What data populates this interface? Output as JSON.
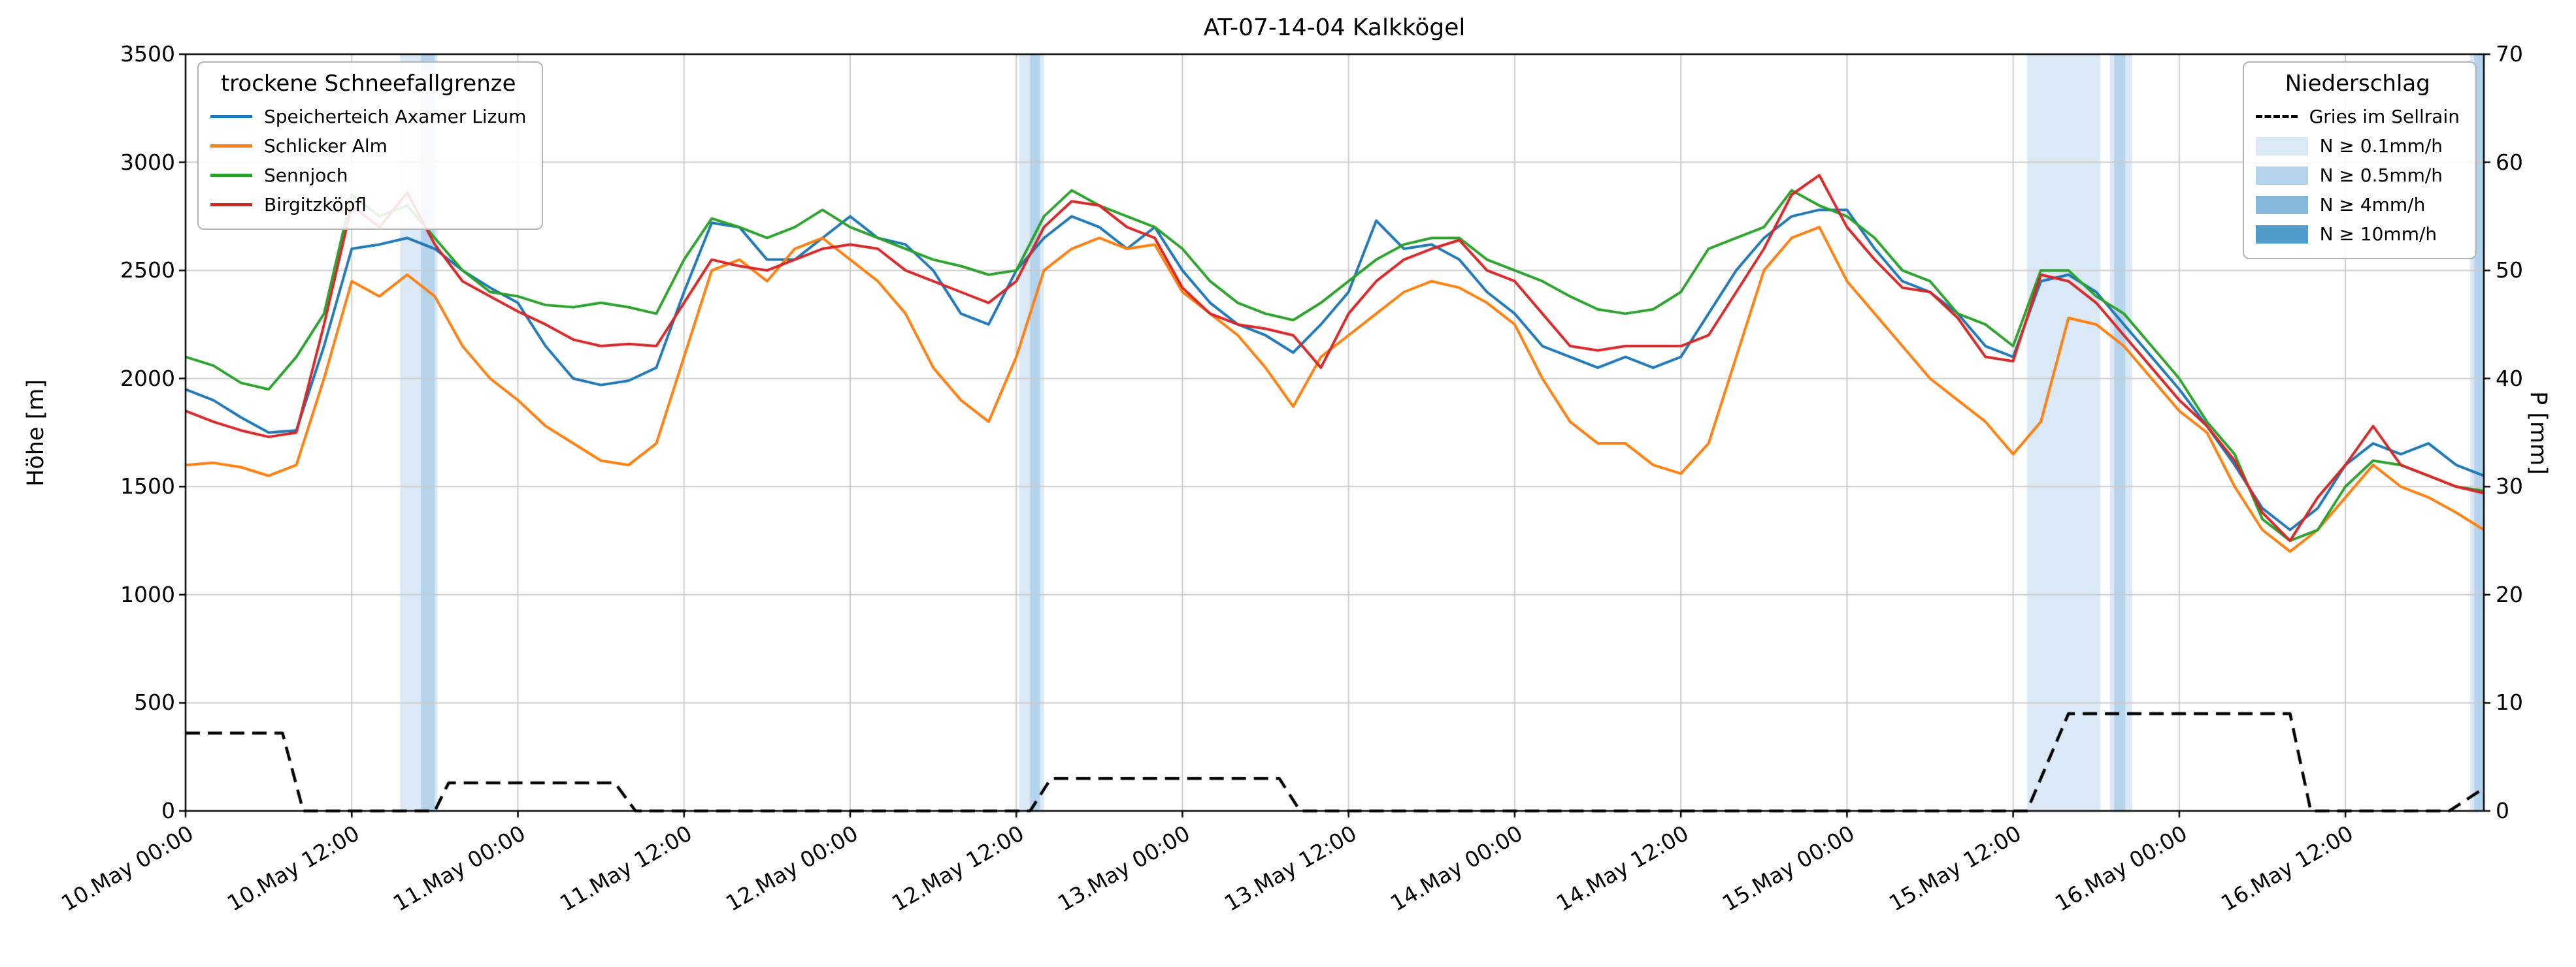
{
  "chart_data": {
    "type": "line",
    "title": "AT-07-14-04 Kalkkögel",
    "xlabel": "",
    "ylabel_left": "Höhe [m]",
    "ylabel_right": "P [mm]",
    "x_unit": "hours since 10.May 00:00",
    "xlim": [
      0,
      166
    ],
    "ylim_left": [
      0,
      3500
    ],
    "ylim_right": [
      0,
      70
    ],
    "grid": true,
    "grid_color": "#cccccc",
    "y_ticks_left": [
      0,
      500,
      1000,
      1500,
      2000,
      2500,
      3000,
      3500
    ],
    "y_ticks_right": [
      0,
      10,
      20,
      30,
      40,
      50,
      60,
      70
    ],
    "x_ticks": [
      {
        "h": 0,
        "label": "10.May 00:00"
      },
      {
        "h": 12,
        "label": "10.May 12:00"
      },
      {
        "h": 24,
        "label": "11.May 00:00"
      },
      {
        "h": 36,
        "label": "11.May 12:00"
      },
      {
        "h": 48,
        "label": "12.May 00:00"
      },
      {
        "h": 60,
        "label": "12.May 12:00"
      },
      {
        "h": 72,
        "label": "13.May 00:00"
      },
      {
        "h": 84,
        "label": "13.May 12:00"
      },
      {
        "h": 96,
        "label": "14.May 00:00"
      },
      {
        "h": 108,
        "label": "14.May 12:00"
      },
      {
        "h": 120,
        "label": "15.May 00:00"
      },
      {
        "h": 132,
        "label": "15.May 12:00"
      },
      {
        "h": 144,
        "label": "16.May 00:00"
      },
      {
        "h": 156,
        "label": "16.May 12:00"
      }
    ],
    "x_hours": [
      0,
      2,
      4,
      6,
      8,
      10,
      12,
      14,
      16,
      18,
      20,
      22,
      24,
      26,
      28,
      30,
      32,
      34,
      36,
      38,
      40,
      42,
      44,
      46,
      48,
      50,
      52,
      54,
      56,
      58,
      60,
      62,
      64,
      66,
      68,
      70,
      72,
      74,
      76,
      78,
      80,
      82,
      84,
      86,
      88,
      90,
      92,
      94,
      96,
      98,
      100,
      102,
      104,
      106,
      108,
      110,
      112,
      114,
      116,
      118,
      120,
      122,
      124,
      126,
      128,
      130,
      132,
      134,
      136,
      138,
      140,
      142,
      144,
      146,
      148,
      150,
      152,
      154,
      156,
      158,
      160,
      162,
      164,
      166
    ],
    "series": [
      {
        "name": "Speicherteich Axamer Lizum",
        "color": "#1f77b4",
        "axis": "left",
        "dash": false,
        "values": [
          1950,
          1900,
          1820,
          1750,
          1760,
          2150,
          2600,
          2620,
          2650,
          2600,
          2500,
          2420,
          2350,
          2150,
          2000,
          1970,
          1990,
          2050,
          2400,
          2720,
          2700,
          2550,
          2550,
          2650,
          2750,
          2650,
          2620,
          2500,
          2300,
          2250,
          2500,
          2650,
          2750,
          2700,
          2600,
          2700,
          2500,
          2350,
          2250,
          2200,
          2120,
          2250,
          2400,
          2730,
          2600,
          2620,
          2550,
          2400,
          2300,
          2150,
          2100,
          2050,
          2100,
          2050,
          2100,
          2300,
          2500,
          2650,
          2750,
          2780,
          2780,
          2600,
          2450,
          2400,
          2300,
          2150,
          2100,
          2450,
          2480,
          2400,
          2250,
          2100,
          1950,
          1780,
          1600,
          1400,
          1300,
          1400,
          1600,
          1700,
          1650,
          1700,
          1600,
          1550
        ]
      },
      {
        "name": "Schlicker Alm",
        "color": "#ff7f0e",
        "axis": "left",
        "dash": false,
        "values": [
          1600,
          1610,
          1590,
          1550,
          1600,
          2000,
          2450,
          2380,
          2480,
          2380,
          2150,
          2000,
          1900,
          1780,
          1700,
          1620,
          1600,
          1700,
          2100,
          2500,
          2550,
          2450,
          2600,
          2650,
          2550,
          2450,
          2300,
          2050,
          1900,
          1800,
          2100,
          2500,
          2600,
          2650,
          2600,
          2620,
          2400,
          2300,
          2200,
          2050,
          1870,
          2100,
          2200,
          2300,
          2400,
          2450,
          2420,
          2350,
          2250,
          2000,
          1800,
          1700,
          1700,
          1600,
          1560,
          1700,
          2100,
          2500,
          2650,
          2700,
          2450,
          2300,
          2150,
          2000,
          1900,
          1800,
          1650,
          1800,
          2280,
          2250,
          2150,
          2000,
          1850,
          1750,
          1500,
          1300,
          1200,
          1300,
          1450,
          1600,
          1500,
          1450,
          1380,
          1300
        ]
      },
      {
        "name": "Sennjoch",
        "color": "#2ca02c",
        "axis": "left",
        "dash": false,
        "values": [
          2100,
          2060,
          1980,
          1950,
          2100,
          2300,
          2850,
          2750,
          2800,
          2650,
          2500,
          2400,
          2380,
          2340,
          2330,
          2350,
          2330,
          2300,
          2550,
          2740,
          2700,
          2650,
          2700,
          2780,
          2700,
          2650,
          2600,
          2550,
          2520,
          2480,
          2500,
          2750,
          2870,
          2800,
          2750,
          2700,
          2600,
          2450,
          2350,
          2300,
          2270,
          2350,
          2450,
          2550,
          2620,
          2650,
          2650,
          2550,
          2500,
          2450,
          2380,
          2320,
          2300,
          2320,
          2400,
          2600,
          2650,
          2700,
          2870,
          2800,
          2750,
          2650,
          2500,
          2450,
          2300,
          2250,
          2150,
          2500,
          2500,
          2380,
          2300,
          2150,
          2000,
          1800,
          1650,
          1350,
          1250,
          1300,
          1500,
          1620,
          1600,
          1550,
          1500,
          1480
        ]
      },
      {
        "name": "Birgitzköpfl",
        "color": "#d62728",
        "axis": "left",
        "dash": false,
        "values": [
          1850,
          1800,
          1760,
          1730,
          1750,
          2250,
          2800,
          2700,
          2860,
          2620,
          2450,
          2380,
          2310,
          2250,
          2180,
          2150,
          2160,
          2150,
          2350,
          2550,
          2520,
          2500,
          2550,
          2600,
          2620,
          2600,
          2500,
          2450,
          2400,
          2350,
          2450,
          2700,
          2820,
          2800,
          2700,
          2650,
          2420,
          2300,
          2250,
          2230,
          2200,
          2050,
          2300,
          2450,
          2550,
          2600,
          2640,
          2500,
          2450,
          2300,
          2150,
          2130,
          2150,
          2150,
          2150,
          2200,
          2400,
          2600,
          2850,
          2940,
          2700,
          2550,
          2420,
          2400,
          2280,
          2100,
          2080,
          2480,
          2450,
          2350,
          2200,
          2050,
          1900,
          1780,
          1620,
          1380,
          1250,
          1450,
          1600,
          1780,
          1600,
          1550,
          1500,
          1470
        ]
      },
      {
        "name": "Gries im Sellrain",
        "color": "#000000",
        "axis": "right",
        "dash": true,
        "x": [
          0,
          7,
          8.5,
          18,
          19,
          31,
          32.5,
          61,
          62.5,
          79,
          80.5,
          133,
          136,
          152,
          153.5,
          163.5,
          166
        ],
        "values": [
          7.2,
          7.2,
          0,
          0,
          2.6,
          2.6,
          0,
          0,
          3.0,
          3.0,
          0,
          0,
          9.0,
          9.0,
          0,
          0,
          2.1
        ]
      }
    ],
    "band_levels": [
      {
        "threshold": "N ≥ 0.1mm/h",
        "color": "#dbe9f6"
      },
      {
        "threshold": "N ≥ 0.5mm/h",
        "color": "#b5d3ea"
      },
      {
        "threshold": "N ≥ 4mm/h",
        "color": "#85b8db"
      },
      {
        "threshold": "N ≥ 10mm/h",
        "color": "#4f9bcb"
      }
    ],
    "bands": [
      {
        "start": 15.5,
        "end": 18.2,
        "level": 0
      },
      {
        "start": 17.0,
        "end": 18.0,
        "level": 1
      },
      {
        "start": 60.2,
        "end": 62.0,
        "level": 0
      },
      {
        "start": 61.0,
        "end": 61.7,
        "level": 1
      },
      {
        "start": 133.0,
        "end": 138.3,
        "level": 0
      },
      {
        "start": 139.0,
        "end": 140.6,
        "level": 0
      },
      {
        "start": 139.3,
        "end": 140.1,
        "level": 1
      },
      {
        "start": 165.0,
        "end": 166.0,
        "level": 0
      },
      {
        "start": 165.3,
        "end": 166.0,
        "level": 1
      }
    ],
    "legends": {
      "snowline": {
        "title": "trockene Schneefallgrenze",
        "items": [
          {
            "label": "Speicherteich Axamer Lizum",
            "color": "#1f77b4",
            "type": "line"
          },
          {
            "label": "Schlicker Alm",
            "color": "#ff7f0e",
            "type": "line"
          },
          {
            "label": "Sennjoch",
            "color": "#2ca02c",
            "type": "line"
          },
          {
            "label": "Birgitzköpfl",
            "color": "#d62728",
            "type": "line"
          }
        ]
      },
      "precip": {
        "title": "Niederschlag",
        "items": [
          {
            "label": "Gries im Sellrain",
            "color": "#000000",
            "type": "dash"
          },
          {
            "label": "N ≥ 0.1mm/h",
            "color": "#dbe9f6",
            "type": "patch"
          },
          {
            "label": "N ≥ 0.5mm/h",
            "color": "#b5d3ea",
            "type": "patch"
          },
          {
            "label": "N ≥ 4mm/h",
            "color": "#85b8db",
            "type": "patch"
          },
          {
            "label": "N ≥ 10mm/h",
            "color": "#4f9bcb",
            "type": "patch"
          }
        ]
      }
    }
  }
}
